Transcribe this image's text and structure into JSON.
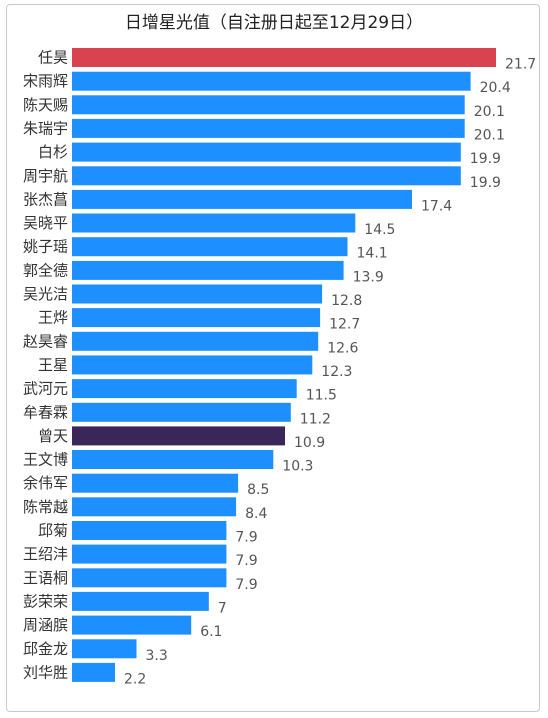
{
  "chart_data": {
    "type": "bar",
    "orientation": "horizontal",
    "title": "日增星光值（自注册日起至12月29日）",
    "xlabel": "",
    "ylabel": "",
    "xlim": [
      0,
      21.7
    ],
    "grid": false,
    "legend": "none",
    "categories": [
      "任昊",
      "宋雨辉",
      "陈天赐",
      "朱瑞宇",
      "白杉",
      "周宇航",
      "张杰菖",
      "吴晓平",
      "姚子瑶",
      "郭全德",
      "吴光洁",
      "王烨",
      "赵昊睿",
      "王星",
      "武河元",
      "牟春霖",
      "曾天",
      "王文博",
      "余伟军",
      "陈常越",
      "邱菊",
      "王绍沣",
      "王语桐",
      "彭荣荣",
      "周涵膑",
      "邱金龙",
      "刘华胜"
    ],
    "values": [
      21.7,
      20.4,
      20.1,
      20.1,
      19.9,
      19.9,
      17.4,
      14.5,
      14.1,
      13.9,
      12.8,
      12.7,
      12.6,
      12.3,
      11.5,
      11.2,
      10.9,
      10.3,
      8.5,
      8.4,
      7.9,
      7.9,
      7.9,
      7,
      6.1,
      3.3,
      2.2
    ],
    "value_labels": [
      "21.7",
      "20.4",
      "20.1",
      "20.1",
      "19.9",
      "19.9",
      "17.4",
      "14.5",
      "14.1",
      "13.9",
      "12.8",
      "12.7",
      "12.6",
      "12.3",
      "11.5",
      "11.2",
      "10.9",
      "10.3",
      "8.5",
      "8.4",
      "7.9",
      "7.9",
      "7.9",
      "7",
      "6.1",
      "3.3",
      "2.2"
    ],
    "colors": {
      "default": "#1e8fff",
      "highlight_top": "#d9434f",
      "highlight_self": "#3b2659"
    },
    "highlights": {
      "任昊": "highlight_top",
      "曾天": "highlight_self"
    }
  }
}
